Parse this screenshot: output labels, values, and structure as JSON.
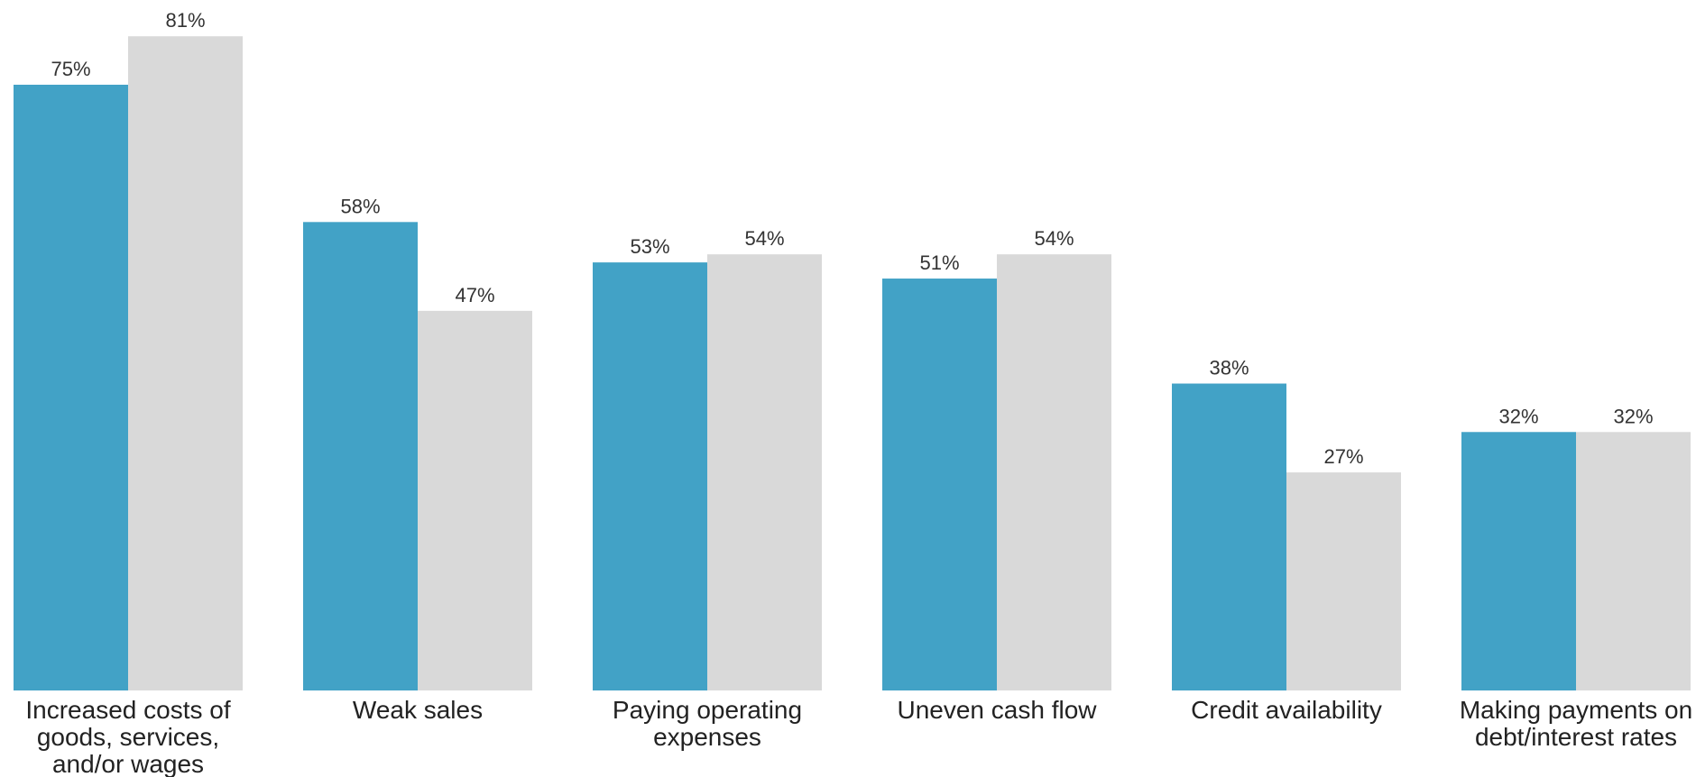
{
  "chart_data": {
    "type": "bar",
    "categories": [
      [
        "Increased costs of",
        "goods, services,",
        "and/or wages"
      ],
      [
        "Weak sales"
      ],
      [
        "Paying operating",
        "expenses"
      ],
      [
        "Uneven cash flow"
      ],
      [
        "Credit availability"
      ],
      [
        "Making payments on",
        "debt/interest rates"
      ]
    ],
    "series": [
      {
        "values": [
          75,
          58,
          53,
          51,
          38,
          32
        ],
        "color": "#42A2C6"
      },
      {
        "values": [
          81,
          47,
          54,
          54,
          27,
          32
        ],
        "color": "#D9D9D9"
      }
    ],
    "value_suffix": "%",
    "ylim": [
      0,
      100
    ],
    "grid": false,
    "legend": "none"
  }
}
